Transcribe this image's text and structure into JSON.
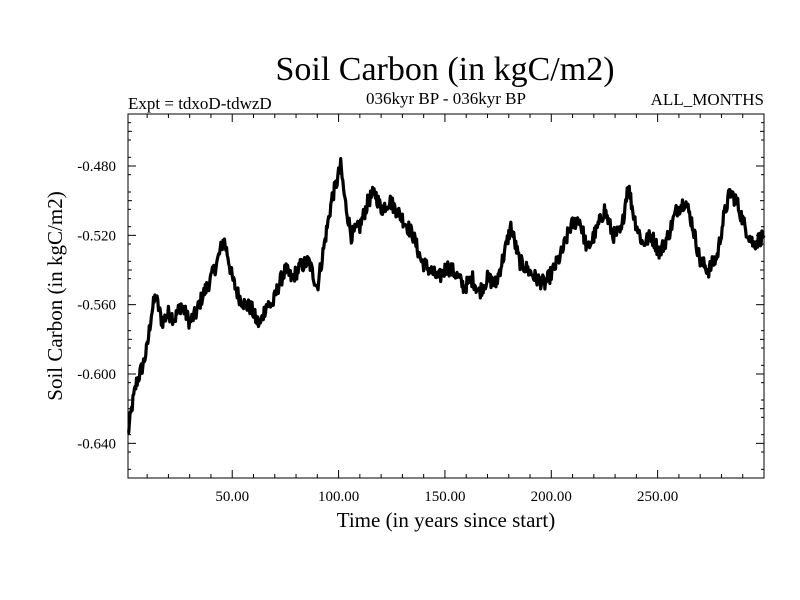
{
  "chart_data": {
    "type": "line",
    "title": "Soil Carbon (in kgC/m2)",
    "subtitle_left": "Expt = tdxoD-tdwzD",
    "subtitle_center": "036kyr BP - 036kyr BP",
    "subtitle_right": "ALL_MONTHS",
    "xlabel": "Time (in years since start)",
    "ylabel": "Soil Carbon (in kgC/m2)",
    "xlim": [
      1,
      300
    ],
    "ylim": [
      -0.66,
      -0.45
    ],
    "x_ticks": [
      50,
      100,
      150,
      200,
      250
    ],
    "x_tick_labels": [
      "50.00",
      "100.00",
      "150.00",
      "200.00",
      "250.00"
    ],
    "y_ticks": [
      -0.48,
      -0.52,
      -0.56,
      -0.6,
      -0.64
    ],
    "y_tick_labels": [
      "-0.480",
      "-0.520",
      "-0.560",
      "-0.600",
      "-0.640"
    ],
    "grid": false,
    "line_color": "#000000",
    "series": [
      {
        "x": [
          1,
          3,
          5,
          8,
          10,
          12,
          14,
          17,
          20,
          23,
          26,
          30,
          33,
          36,
          40,
          43,
          46,
          48,
          50,
          53,
          56,
          59,
          61,
          63,
          66,
          69,
          72,
          75,
          78,
          82,
          86,
          90,
          94,
          97,
          99,
          101,
          103,
          106,
          110,
          114,
          117,
          120,
          124,
          127,
          131,
          135,
          139,
          143,
          147,
          151,
          155,
          159,
          163,
          166,
          170,
          174,
          178,
          181,
          185,
          189,
          193,
          197,
          201,
          205,
          209,
          213,
          217,
          221,
          225,
          229,
          233,
          236,
          239,
          243,
          247,
          251,
          255,
          259,
          263,
          266,
          270,
          274,
          278,
          281,
          284,
          287,
          291,
          295,
          300
        ],
        "y": [
          -0.635,
          -0.618,
          -0.605,
          -0.595,
          -0.585,
          -0.565,
          -0.555,
          -0.57,
          -0.565,
          -0.568,
          -0.56,
          -0.57,
          -0.565,
          -0.555,
          -0.545,
          -0.535,
          -0.522,
          -0.532,
          -0.545,
          -0.555,
          -0.56,
          -0.562,
          -0.568,
          -0.572,
          -0.56,
          -0.56,
          -0.548,
          -0.54,
          -0.545,
          -0.538,
          -0.535,
          -0.55,
          -0.52,
          -0.498,
          -0.49,
          -0.48,
          -0.5,
          -0.52,
          -0.515,
          -0.5,
          -0.495,
          -0.505,
          -0.5,
          -0.505,
          -0.512,
          -0.52,
          -0.535,
          -0.54,
          -0.545,
          -0.538,
          -0.542,
          -0.55,
          -0.545,
          -0.553,
          -0.545,
          -0.548,
          -0.53,
          -0.515,
          -0.535,
          -0.54,
          -0.545,
          -0.548,
          -0.54,
          -0.53,
          -0.515,
          -0.51,
          -0.528,
          -0.518,
          -0.505,
          -0.52,
          -0.518,
          -0.49,
          -0.51,
          -0.525,
          -0.52,
          -0.53,
          -0.52,
          -0.505,
          -0.5,
          -0.512,
          -0.535,
          -0.54,
          -0.532,
          -0.51,
          -0.495,
          -0.5,
          -0.515,
          -0.525,
          -0.52
        ]
      }
    ]
  }
}
